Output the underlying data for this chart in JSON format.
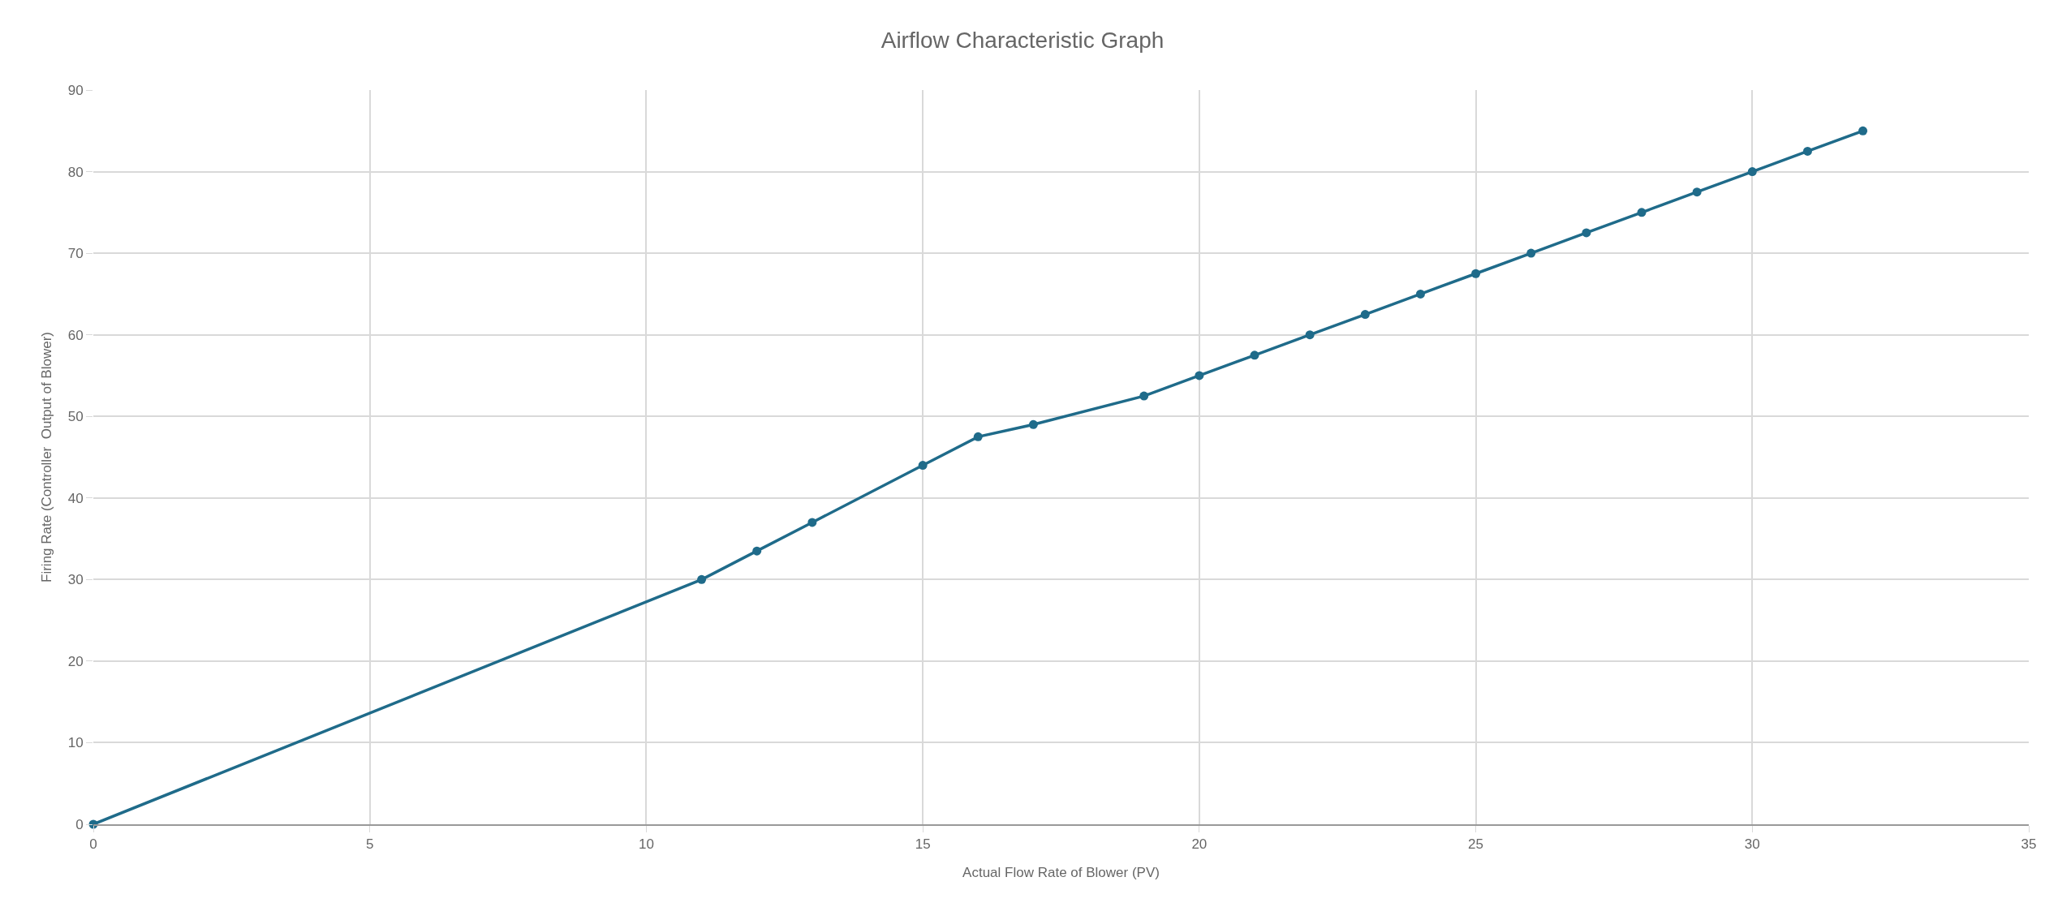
{
  "chart_data": {
    "type": "line",
    "title": "Airflow Characteristic Graph",
    "xlabel": "Actual Flow Rate of Blower (PV)",
    "ylabel": "Firing Rate (Controller  Output of Blower)",
    "x": [
      0,
      11,
      12,
      13,
      15,
      16,
      17,
      19,
      20,
      21,
      22,
      23,
      24,
      25,
      26,
      27,
      28,
      29,
      30,
      31,
      32
    ],
    "series": [
      {
        "color": "#1f6b8a",
        "values": [
          0,
          30,
          33.5,
          37,
          44,
          47.5,
          49,
          52.5,
          55,
          57.5,
          60,
          62.5,
          65,
          67.5,
          70,
          72.5,
          75,
          77.5,
          80,
          82.5,
          85
        ]
      }
    ],
    "xlim": [
      0,
      35
    ],
    "xticks": [
      0,
      5,
      10,
      15,
      20,
      25,
      30,
      35
    ],
    "ylim": [
      0,
      90
    ],
    "yticks": [
      0,
      10,
      20,
      30,
      40,
      50,
      60,
      70,
      80,
      90
    ],
    "grid": true,
    "marker": "circle",
    "line_style": "solid"
  }
}
